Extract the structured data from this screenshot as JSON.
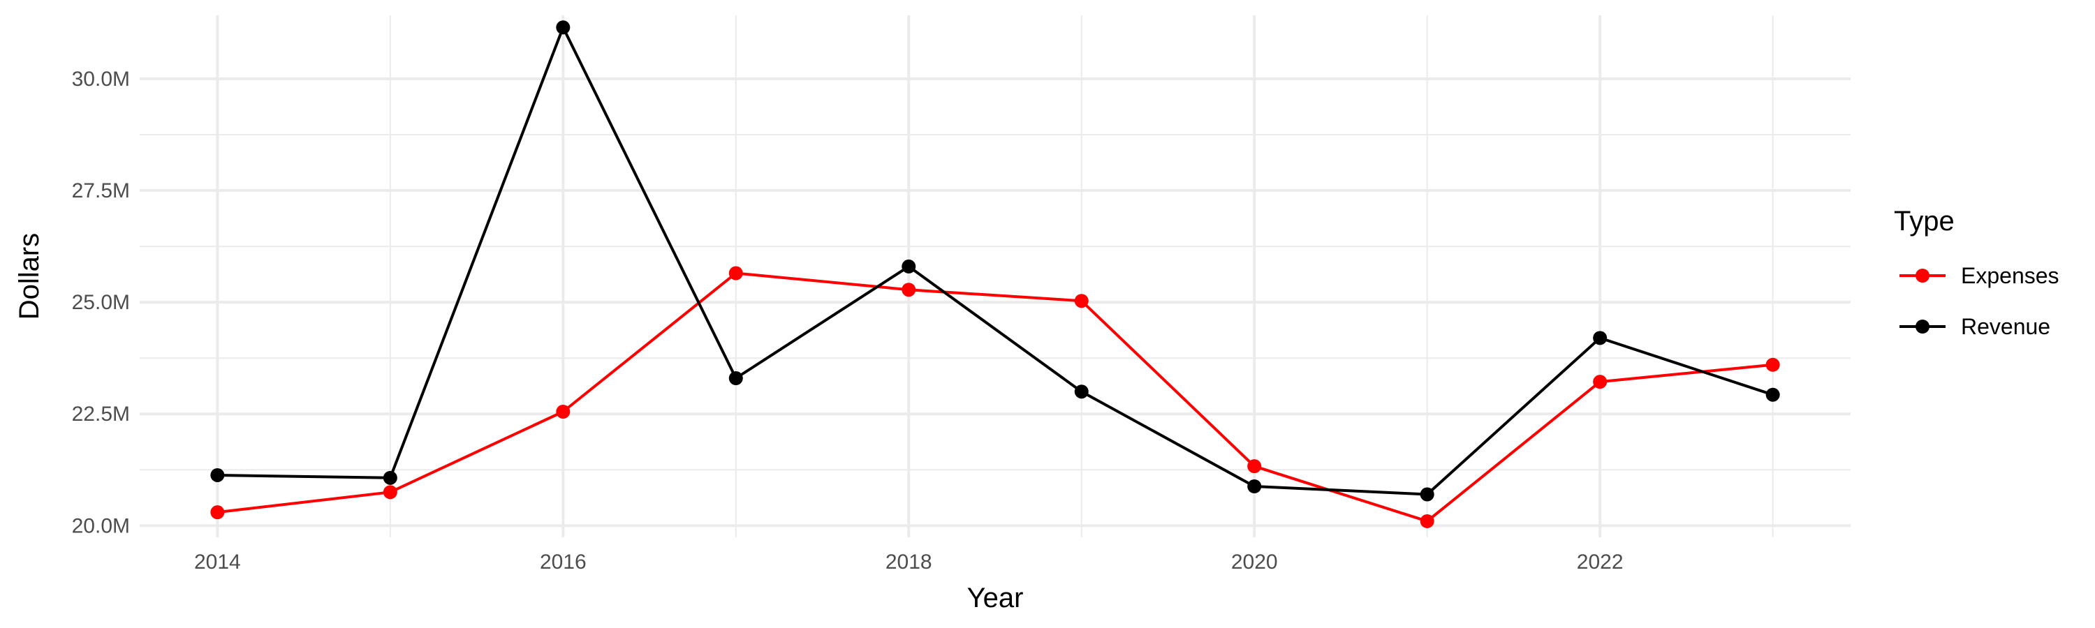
{
  "chart_data": {
    "type": "line",
    "x": [
      2014,
      2015,
      2016,
      2017,
      2018,
      2019,
      2020,
      2021,
      2022,
      2023
    ],
    "series": [
      {
        "name": "Expenses",
        "color": "#ff0000",
        "values": [
          20.3,
          20.75,
          22.55,
          25.65,
          25.28,
          25.03,
          21.33,
          20.1,
          23.22,
          23.6
        ]
      },
      {
        "name": "Revenue",
        "color": "#000000",
        "values": [
          21.13,
          21.07,
          31.15,
          23.3,
          25.8,
          23.0,
          20.88,
          20.7,
          24.2,
          22.93
        ]
      }
    ],
    "xlabel": "Year",
    "ylabel": "Dollars",
    "x_ticks": [
      "2014",
      "2016",
      "2018",
      "2020",
      "2022"
    ],
    "x_tick_values": [
      2014,
      2016,
      2018,
      2020,
      2022
    ],
    "y_ticks": [
      "20.0M",
      "22.5M",
      "25.0M",
      "27.5M",
      "30.0M"
    ],
    "y_tick_values": [
      20.0,
      22.5,
      25.0,
      27.5,
      30.0
    ],
    "xlim": [
      2013.55,
      2023.45
    ],
    "ylim": [
      19.74,
      31.42
    ],
    "grid": true,
    "legend": {
      "title": "Type",
      "placement": "right",
      "entries": [
        "Expenses",
        "Revenue"
      ]
    }
  }
}
